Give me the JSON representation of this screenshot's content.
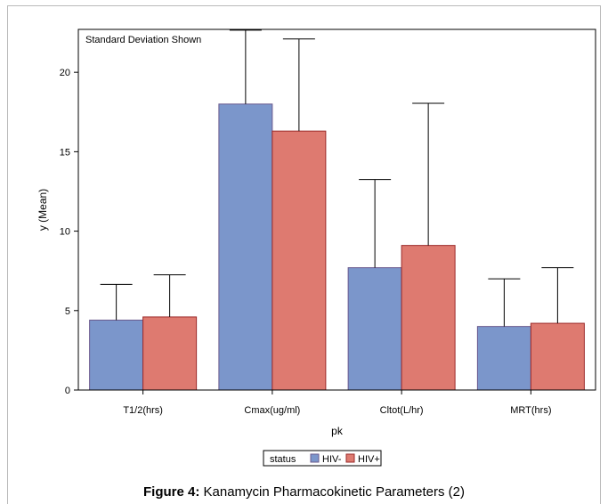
{
  "chart_data": {
    "type": "bar",
    "annotation": "Standard Deviation Shown",
    "xlabel": "pk",
    "ylabel": "y (Mean)",
    "ylim": [
      0,
      22.7
    ],
    "yticks": [
      0,
      5,
      10,
      15,
      20
    ],
    "categories": [
      "T1/2(hrs)",
      "Cmax(ug/ml)",
      "Cltot(L/hr)",
      "MRT(hrs)"
    ],
    "legend_title": "status",
    "legend_position": "bottom-center",
    "series": [
      {
        "name": "HIV-",
        "color": "#7b96cb",
        "values": [
          4.4,
          18.0,
          7.7,
          4.0
        ],
        "sd": [
          2.25,
          4.65,
          5.55,
          3.0
        ]
      },
      {
        "name": "HIV+",
        "color": "#de7a70",
        "values": [
          4.6,
          16.3,
          9.1,
          4.2
        ],
        "sd": [
          2.65,
          5.8,
          8.95,
          3.5
        ]
      }
    ]
  },
  "caption": {
    "label": "Figure 4:",
    "text": " Kanamycin Pharmacokinetic Parameters (2)"
  }
}
